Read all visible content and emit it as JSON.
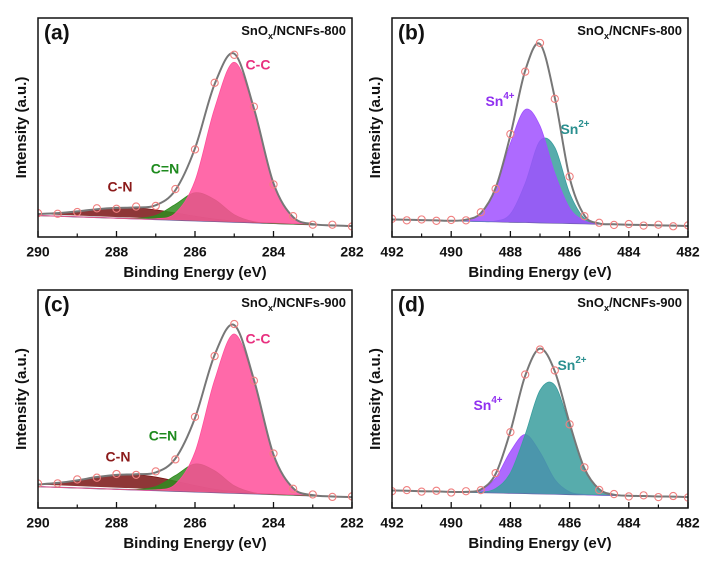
{
  "chart_data": [
    {
      "type": "line",
      "panel_label": "(a)",
      "sample": "SnOx/NCNFs-800",
      "xlabel": "Binding Energy (eV)",
      "ylabel": "Intensity (a.u.)",
      "xlim": [
        290,
        282
      ],
      "xticks": [
        290,
        288,
        286,
        284,
        282
      ],
      "xminorticks": [
        289,
        287,
        285,
        283
      ],
      "ylim": [
        0,
        100
      ],
      "x": [
        290,
        289.5,
        289,
        288.5,
        288,
        287.5,
        287,
        286.5,
        286,
        285.5,
        285,
        284.5,
        284,
        283.5,
        283,
        282.5,
        282
      ],
      "series": [
        {
          "style": "background",
          "color": "#6b5aa0",
          "values": [
            9.8,
            9.5,
            9.2,
            8.9,
            8.6,
            8.3,
            8.0,
            7.7,
            7.4,
            7.1,
            6.8,
            6.5,
            6.2,
            5.9,
            5.6,
            5.3,
            5.0
          ]
        },
        {
          "name": "C-N",
          "style": "area",
          "color": "#7a1414",
          "label_color": "#8b1a1a",
          "values": [
            10.5,
            10.9,
            11.7,
            12.7,
            13.3,
            13.3,
            12.4,
            11.0,
            9.5,
            8.2,
            7.3,
            6.7,
            6.3,
            5.9,
            5.6,
            5.3,
            5.0
          ]
        },
        {
          "name": "C=N",
          "style": "area",
          "color": "#2e8b1e",
          "label_color": "#1d8a1d",
          "values": [
            9.8,
            9.5,
            9.2,
            8.9,
            8.6,
            8.5,
            9.8,
            14.9,
            20.2,
            17.1,
            10.2,
            7.0,
            6.2,
            5.9,
            5.6,
            5.3,
            5.0
          ]
        },
        {
          "name": "C-C",
          "style": "area",
          "color": "#ff4f9a",
          "label_color": "#e8307f",
          "values": [
            9.8,
            9.5,
            9.2,
            8.9,
            8.6,
            8.3,
            8.3,
            10.9,
            25.6,
            58.7,
            79.8,
            58.1,
            24.4,
            9.1,
            5.9,
            5.3,
            5.0
          ]
        },
        {
          "style": "fit",
          "color": "#777777",
          "values": [
            10.5,
            10.9,
            11.7,
            12.7,
            13.3,
            13.5,
            14.5,
            21.4,
            40.5,
            69.8,
            83.7,
            58.8,
            24.5,
            9.1,
            5.9,
            5.3,
            5.0
          ]
        },
        {
          "style": "points",
          "color": "#f08080",
          "values": [
            10.9,
            10.6,
            11.4,
            13.1,
            12.9,
            13.9,
            14.2,
            21.9,
            40.0,
            70.4,
            83.2,
            59.5,
            24.0,
            9.5,
            5.6,
            5.6,
            4.8
          ]
        }
      ]
    },
    {
      "type": "line",
      "panel_label": "(b)",
      "sample": "SnOx/NCNFs-800",
      "xlabel": "Binding Energy (eV)",
      "ylabel": "Intensity (a.u.)",
      "xlim": [
        492,
        482
      ],
      "xticks": [
        492,
        490,
        488,
        486,
        484,
        482
      ],
      "xminorticks": [
        491,
        489,
        487,
        485,
        483
      ],
      "ylim": [
        0,
        100
      ],
      "x": [
        492,
        491.5,
        491,
        490.5,
        490,
        489.5,
        489,
        488.5,
        488,
        487.5,
        487,
        486.5,
        486,
        485.5,
        485,
        484.5,
        484,
        483.5,
        483,
        482.5,
        482
      ],
      "series": [
        {
          "style": "background",
          "color": "#6b5aa0",
          "values": [
            8.0,
            7.9,
            7.7,
            7.6,
            7.4,
            7.3,
            7.1,
            7.0,
            6.8,
            6.7,
            6.5,
            6.4,
            6.2,
            6.1,
            5.9,
            5.8,
            5.6,
            5.5,
            5.3,
            5.2,
            5.0
          ]
        },
        {
          "name": "Sn2+",
          "style": "area",
          "color": "#3a9e9e",
          "label_color": "#2a8f8f",
          "values": [
            8.0,
            7.9,
            7.7,
            7.6,
            7.4,
            7.3,
            7.1,
            7.3,
            10.5,
            24.5,
            43.9,
            40.9,
            20.1,
            8.5,
            6.1,
            5.8,
            5.6,
            5.5,
            5.3,
            5.2,
            5.0
          ]
        },
        {
          "name": "Sn4+",
          "style": "area",
          "color": "#a050ff",
          "label_color": "#9030f0",
          "values": [
            8.0,
            7.9,
            7.7,
            7.6,
            7.4,
            7.9,
            10.9,
            22.1,
            42.8,
            58.2,
            50.7,
            29.1,
            13.2,
            7.4,
            6.0,
            5.8,
            5.6,
            5.5,
            5.3,
            5.2,
            5.0
          ]
        },
        {
          "style": "fit",
          "color": "#777777",
          "values": [
            8.0,
            7.9,
            7.7,
            7.6,
            7.4,
            7.9,
            10.9,
            22.4,
            46.5,
            76.0,
            88.1,
            63.6,
            27.1,
            9.8,
            6.2,
            5.8,
            5.6,
            5.5,
            5.3,
            5.2,
            5.0
          ]
        },
        {
          "style": "points",
          "color": "#f08080",
          "values": [
            8.3,
            7.6,
            8.0,
            7.4,
            7.8,
            7.6,
            11.3,
            22.0,
            47.0,
            75.5,
            88.6,
            63.1,
            27.6,
            9.5,
            6.5,
            5.5,
            5.9,
            5.2,
            5.6,
            4.9,
            5.3
          ]
        }
      ]
    },
    {
      "type": "line",
      "panel_label": "(c)",
      "sample": "SnOx/NCNFs-900",
      "xlabel": "Binding Energy (eV)",
      "ylabel": "Intensity (a.u.)",
      "xlim": [
        290,
        282
      ],
      "xticks": [
        290,
        288,
        286,
        284,
        282
      ],
      "xminorticks": [
        289,
        287,
        285,
        283
      ],
      "ylim": [
        0,
        100
      ],
      "x": [
        290,
        289.5,
        289,
        288.5,
        288,
        287.5,
        287,
        286.5,
        286,
        285.5,
        285,
        284.5,
        284,
        283.5,
        283,
        282.5,
        282
      ],
      "series": [
        {
          "style": "background",
          "color": "#6b5aa0",
          "values": [
            9.8,
            9.5,
            9.2,
            8.9,
            8.6,
            8.3,
            8.0,
            7.7,
            7.4,
            7.1,
            6.8,
            6.5,
            6.2,
            5.9,
            5.6,
            5.3,
            5.0
          ]
        },
        {
          "name": "C-N",
          "style": "area",
          "color": "#7a1414",
          "label_color": "#8b1a1a",
          "values": [
            10.8,
            11.5,
            12.7,
            14.2,
            15.2,
            15.3,
            14.2,
            12.3,
            10.3,
            8.6,
            7.5,
            6.8,
            6.3,
            5.9,
            5.6,
            5.3,
            5.0
          ]
        },
        {
          "name": "C=N",
          "style": "area",
          "color": "#2e8b1e",
          "label_color": "#1d8a1d",
          "values": [
            9.8,
            9.5,
            9.2,
            8.9,
            8.6,
            8.5,
            9.8,
            14.9,
            20.2,
            17.1,
            10.2,
            7.0,
            6.2,
            5.9,
            5.6,
            5.3,
            5.0
          ]
        },
        {
          "name": "C-C",
          "style": "area",
          "color": "#ff4f9a",
          "label_color": "#e8307f",
          "values": [
            9.8,
            9.5,
            9.2,
            8.9,
            8.6,
            8.3,
            8.3,
            10.9,
            25.6,
            58.7,
            79.8,
            58.1,
            24.4,
            9.1,
            5.9,
            5.3,
            5.0
          ]
        },
        {
          "style": "fit",
          "color": "#777777",
          "values": [
            10.8,
            11.5,
            12.7,
            14.2,
            15.2,
            15.5,
            16.3,
            22.7,
            41.3,
            70.2,
            83.9,
            58.9,
            24.5,
            9.1,
            5.9,
            5.3,
            5.0
          ]
        },
        {
          "style": "points",
          "color": "#f08080",
          "values": [
            11.2,
            11.3,
            13.1,
            13.9,
            15.6,
            15.2,
            16.8,
            22.3,
            41.8,
            69.7,
            84.4,
            58.4,
            25.0,
            8.8,
            6.2,
            5.1,
            5.3
          ]
        }
      ]
    },
    {
      "type": "line",
      "panel_label": "(d)",
      "sample": "SnOx/NCNFs-900",
      "xlabel": "Binding Energy (eV)",
      "ylabel": "Intensity (a.u.)",
      "xlim": [
        492,
        482
      ],
      "xticks": [
        492,
        490,
        488,
        486,
        484,
        482
      ],
      "xminorticks": [
        491,
        489,
        487,
        485,
        483
      ],
      "ylim": [
        0,
        100
      ],
      "x": [
        492,
        491.5,
        491,
        490.5,
        490,
        489.5,
        489,
        488.5,
        488,
        487.5,
        487,
        486.5,
        486,
        485.5,
        485,
        484.5,
        484,
        483.5,
        483,
        482.5,
        482
      ],
      "series": [
        {
          "style": "background",
          "color": "#6b5aa0",
          "values": [
            8.0,
            7.9,
            7.7,
            7.6,
            7.4,
            7.3,
            7.1,
            7.0,
            6.8,
            6.7,
            6.5,
            6.4,
            6.2,
            6.1,
            5.9,
            5.8,
            5.6,
            5.5,
            5.3,
            5.2,
            5.0
          ]
        },
        {
          "name": "Sn4+",
          "style": "area",
          "color": "#a050ff",
          "label_color": "#9030f0",
          "values": [
            8.0,
            7.9,
            7.7,
            7.6,
            7.4,
            7.4,
            8.3,
            13.7,
            25.9,
            33.7,
            25.6,
            13.1,
            7.4,
            6.2,
            5.9,
            5.8,
            5.6,
            5.5,
            5.3,
            5.2,
            5.0
          ]
        },
        {
          "name": "Sn2+",
          "style": "area",
          "color": "#3a9e9e",
          "label_color": "#2a8f8f",
          "values": [
            8.0,
            7.9,
            7.7,
            7.6,
            7.4,
            7.3,
            7.3,
            8.9,
            16.1,
            33.7,
            54.0,
            56.3,
            37.7,
            18.1,
            8.6,
            6.1,
            5.6,
            5.5,
            5.3,
            5.2,
            5.0
          ]
        },
        {
          "style": "fit",
          "color": "#777777",
          "values": [
            8.0,
            7.9,
            7.7,
            7.6,
            7.4,
            7.4,
            8.5,
            15.6,
            35.2,
            60.7,
            73.1,
            62.7,
            38.9,
            18.2,
            8.6,
            6.1,
            5.6,
            5.5,
            5.3,
            5.2,
            5.0
          ]
        },
        {
          "style": "points",
          "color": "#f08080",
          "values": [
            7.7,
            8.2,
            7.5,
            7.9,
            7.1,
            7.7,
            8.2,
            16.0,
            34.8,
            61.2,
            72.7,
            63.1,
            38.4,
            18.6,
            8.3,
            6.4,
            5.3,
            5.8,
            5.0,
            5.5,
            4.8
          ]
        }
      ]
    }
  ]
}
